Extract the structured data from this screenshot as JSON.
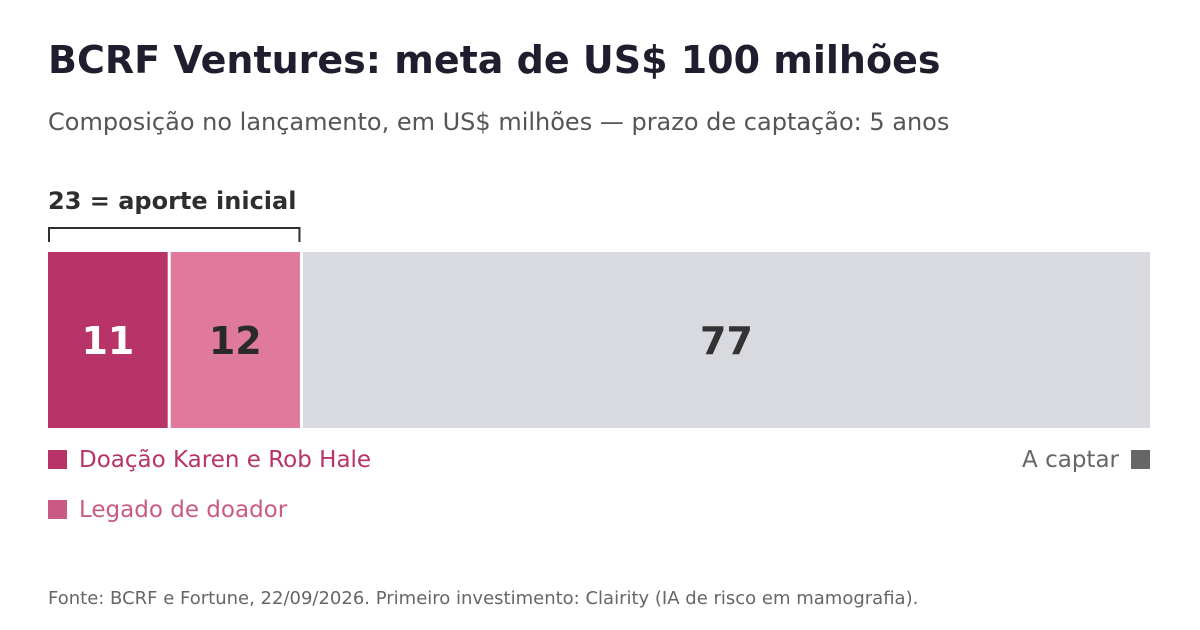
{
  "title": "BCRF Ventures: meta de US$ 100 milhões",
  "subtitle": "Composição no lançamento, em US$ milhões — prazo de captação: 5 anos",
  "annotation": "23 = aporte inicial",
  "source": "Fonte: BCRF e Fortune, 22/09/2026. Primeiro investimento: Clairity (IA de risco em mamografia).",
  "chart_data": {
    "type": "bar",
    "orientation": "horizontal-stacked",
    "total": 100,
    "segments": [
      {
        "name": "Doação Karen e Rob Hale",
        "value": 11,
        "label": "11",
        "color": "#b83367",
        "label_color": "#ffffff",
        "legend_color": "#b83367"
      },
      {
        "name": "Legado de doador",
        "value": 12,
        "label": "12",
        "color": "#e07a9c",
        "label_color": "#2a2a2a",
        "legend_color": "#c95a84"
      },
      {
        "name": "A captar",
        "value": 77,
        "label": "77",
        "color": "#d9dadf",
        "label_color": "#333333",
        "legend_color": "#666666"
      }
    ],
    "bracket": {
      "from": 0,
      "to": 23
    }
  }
}
